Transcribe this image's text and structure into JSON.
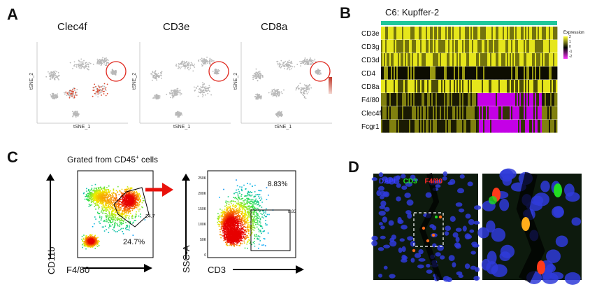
{
  "panels": {
    "A": {
      "letter": "A",
      "plots": [
        {
          "gene": "Clec4f",
          "axis_x": "tSNE_1",
          "axis_y": "tSNE_2"
        },
        {
          "gene": "CD3e",
          "axis_x": "tSNE_1",
          "axis_y": "tSNE_2"
        },
        {
          "gene": "CD8a",
          "axis_x": "tSNE_1",
          "axis_y": "tSNE_2"
        }
      ],
      "highlight_color": "#e0281e"
    },
    "B": {
      "letter": "B",
      "cluster_label": "C6: Kupffer-2",
      "cluster_bar_color": "#1fc79a",
      "genes": [
        "CD3e",
        "CD3g",
        "CD3d",
        "CD4",
        "CD8a",
        "F4/80",
        "Clec4f",
        "Fcgr1"
      ],
      "legend_title": "Expression",
      "legend_ticks": [
        "2",
        "1",
        "0",
        "-1",
        "-2"
      ]
    },
    "C": {
      "letter": "C",
      "subtitle": "Grated from CD45",
      "subtitle_sup": "+",
      "subtitle_end": " cells",
      "plot1": {
        "xlabel": "F4/80",
        "ylabel": "CD11b",
        "gate_pct": "24.7",
        "big_pct": "24.7%"
      },
      "plot2": {
        "xlabel": "CD3",
        "ylabel": "SSC-A",
        "gate_pct": "8.83",
        "big_pct": "8.83%",
        "yticks": [
          "250K",
          "200K",
          "150K",
          "100K",
          "50K",
          "0"
        ]
      }
    },
    "D": {
      "letter": "D",
      "stain_dapi": "DAPI",
      "stain_cd3": "CD3",
      "stain_f480": "F4/80",
      "dapi_color": "#3a3aff",
      "cd3_color": "#22dd22",
      "f480_color": "#ff2a2a"
    }
  }
}
